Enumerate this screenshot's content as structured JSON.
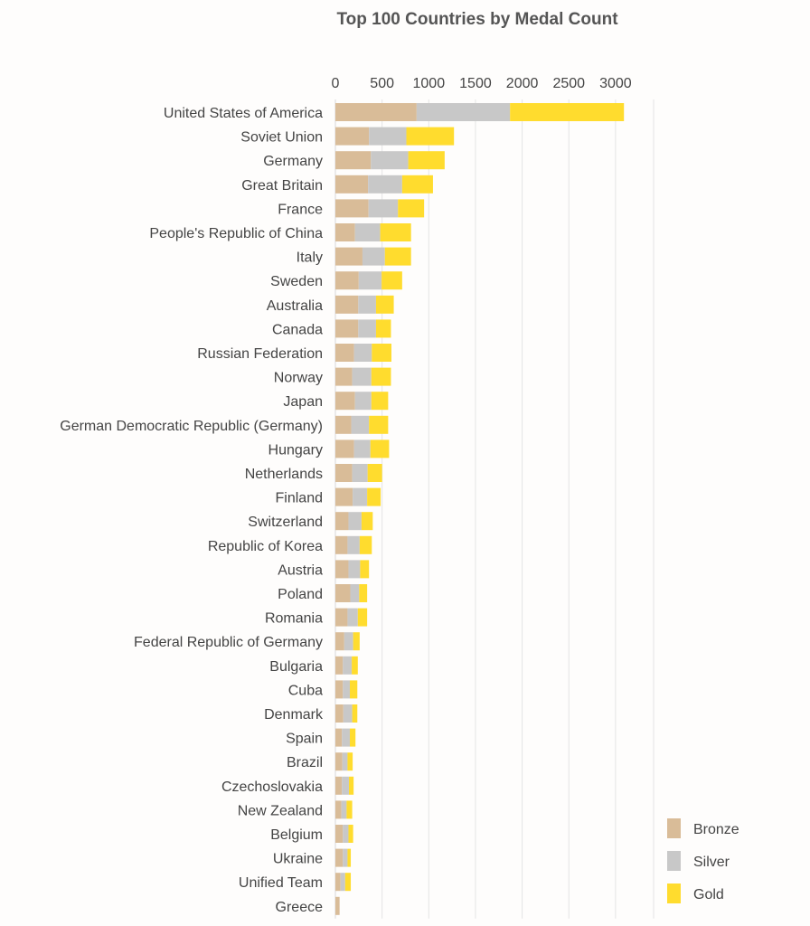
{
  "chart_data": {
    "type": "bar",
    "orientation": "horizontal",
    "stacked": true,
    "title": "Top 100 Countries by Medal Count",
    "xlabel": "",
    "ylabel": "",
    "xlim": [
      0,
      3400
    ],
    "x_ticks": [
      0,
      500,
      1000,
      1500,
      2000,
      2500,
      3000
    ],
    "grid": true,
    "legend_position": "bottom-right",
    "categories": [
      "United States of America",
      "Soviet Union",
      "Germany",
      "Great Britain",
      "France",
      "People's Republic of China",
      "Italy",
      "Sweden",
      "Australia",
      "Canada",
      "Russian Federation",
      "Norway",
      "Japan",
      "German Democratic Republic (Germany)",
      "Hungary",
      "Netherlands",
      "Finland",
      "Switzerland",
      "Republic of Korea",
      "Austria",
      "Poland",
      "Romania",
      "Federal Republic of Germany",
      "Bulgaria",
      "Cuba",
      "Denmark",
      "Spain",
      "Brazil",
      "Czechoslovakia",
      "New Zealand",
      "Belgium",
      "Ukraine",
      "Unified Team",
      "Greece"
    ],
    "series": [
      {
        "name": "Bronze",
        "color": "#d9bc98",
        "values": [
          870,
          360,
          380,
          350,
          355,
          210,
          290,
          250,
          245,
          245,
          200,
          180,
          210,
          170,
          200,
          180,
          185,
          140,
          130,
          140,
          160,
          130,
          95,
          80,
          80,
          85,
          70,
          75,
          70,
          65,
          80,
          80,
          55,
          45
        ]
      },
      {
        "name": "Silver",
        "color": "#c8c8c8",
        "values": [
          1000,
          400,
          400,
          365,
          315,
          270,
          240,
          245,
          190,
          190,
          190,
          205,
          175,
          190,
          175,
          165,
          155,
          140,
          130,
          125,
          95,
          110,
          95,
          95,
          75,
          95,
          85,
          55,
          75,
          55,
          60,
          50,
          50,
          0
        ]
      },
      {
        "name": "Gold",
        "color": "#ffdc2e",
        "values": [
          1220,
          510,
          390,
          330,
          280,
          330,
          280,
          220,
          190,
          160,
          210,
          210,
          180,
          205,
          200,
          155,
          145,
          120,
          130,
          95,
          85,
          100,
          70,
          65,
          80,
          55,
          60,
          55,
          50,
          60,
          50,
          35,
          60,
          0
        ]
      }
    ]
  }
}
